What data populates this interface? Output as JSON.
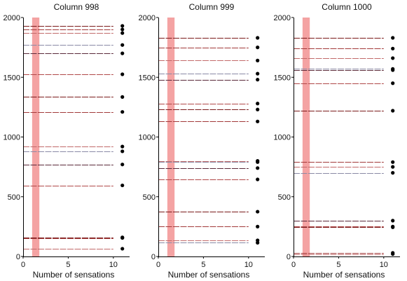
{
  "colors": {
    "highlight_band": "#f4a3a3",
    "segment_palette": [
      "#7a1a1a",
      "#a23a3a",
      "#c26a6a",
      "#8a8aa6",
      "#5a2a3a",
      "#b04848"
    ],
    "dot": "#000000",
    "axis": "#000000"
  },
  "chart_data": [
    {
      "type": "line",
      "title": "Column 998",
      "xlabel": "Number of sensations",
      "ylabel": "",
      "xlim": [
        0,
        11.8
      ],
      "ylim": [
        0,
        2000
      ],
      "x_ticks": [
        0,
        5,
        10
      ],
      "x_tick_labels": [
        "0",
        "5",
        "10"
      ],
      "y_ticks": [
        0,
        500,
        1000,
        1500,
        2000
      ],
      "y_tick_labels": [
        "0",
        "500",
        "1000",
        "1500",
        "2000"
      ],
      "highlight_band": {
        "x_start": 1,
        "x_end": 1.8
      },
      "series_x_range": [
        0,
        10
      ],
      "dot_x": 11,
      "y_values": [
        1930,
        1900,
        1870,
        1770,
        1700,
        1525,
        1335,
        1210,
        920,
        880,
        770,
        595,
        160,
        155,
        65
      ]
    },
    {
      "type": "line",
      "title": "Column 999",
      "xlabel": "Number of sensations",
      "ylabel": "",
      "xlim": [
        0,
        11.8
      ],
      "ylim": [
        0,
        2000
      ],
      "x_ticks": [
        0,
        5,
        10
      ],
      "x_tick_labels": [
        "0",
        "5",
        "10"
      ],
      "y_ticks": [
        0,
        500,
        1000,
        1500,
        2000
      ],
      "y_tick_labels": [
        "0",
        "500",
        "1000",
        "1500",
        "2000"
      ],
      "highlight_band": {
        "x_start": 1,
        "x_end": 1.8
      },
      "series_x_range": [
        0,
        10
      ],
      "dot_x": 11,
      "y_values": [
        1830,
        1750,
        1640,
        1530,
        1480,
        1280,
        1230,
        1130,
        800,
        790,
        740,
        645,
        375,
        250,
        135,
        115
      ]
    },
    {
      "type": "line",
      "title": "Column 1000",
      "xlabel": "Number of sensations",
      "ylabel": "",
      "xlim": [
        0,
        11.8
      ],
      "ylim": [
        0,
        2000
      ],
      "x_ticks": [
        0,
        5,
        10
      ],
      "x_tick_labels": [
        "0",
        "5",
        "10"
      ],
      "y_ticks": [
        0,
        500,
        1000,
        1500,
        2000
      ],
      "y_tick_labels": [
        "0",
        "500",
        "1000",
        "1500",
        "2000"
      ],
      "highlight_band": {
        "x_start": 1,
        "x_end": 1.8
      },
      "series_x_range": [
        0,
        10
      ],
      "dot_x": 11,
      "y_values": [
        1830,
        1740,
        1660,
        1570,
        1560,
        1450,
        1220,
        790,
        750,
        700,
        300,
        250,
        245,
        30,
        20
      ]
    }
  ]
}
